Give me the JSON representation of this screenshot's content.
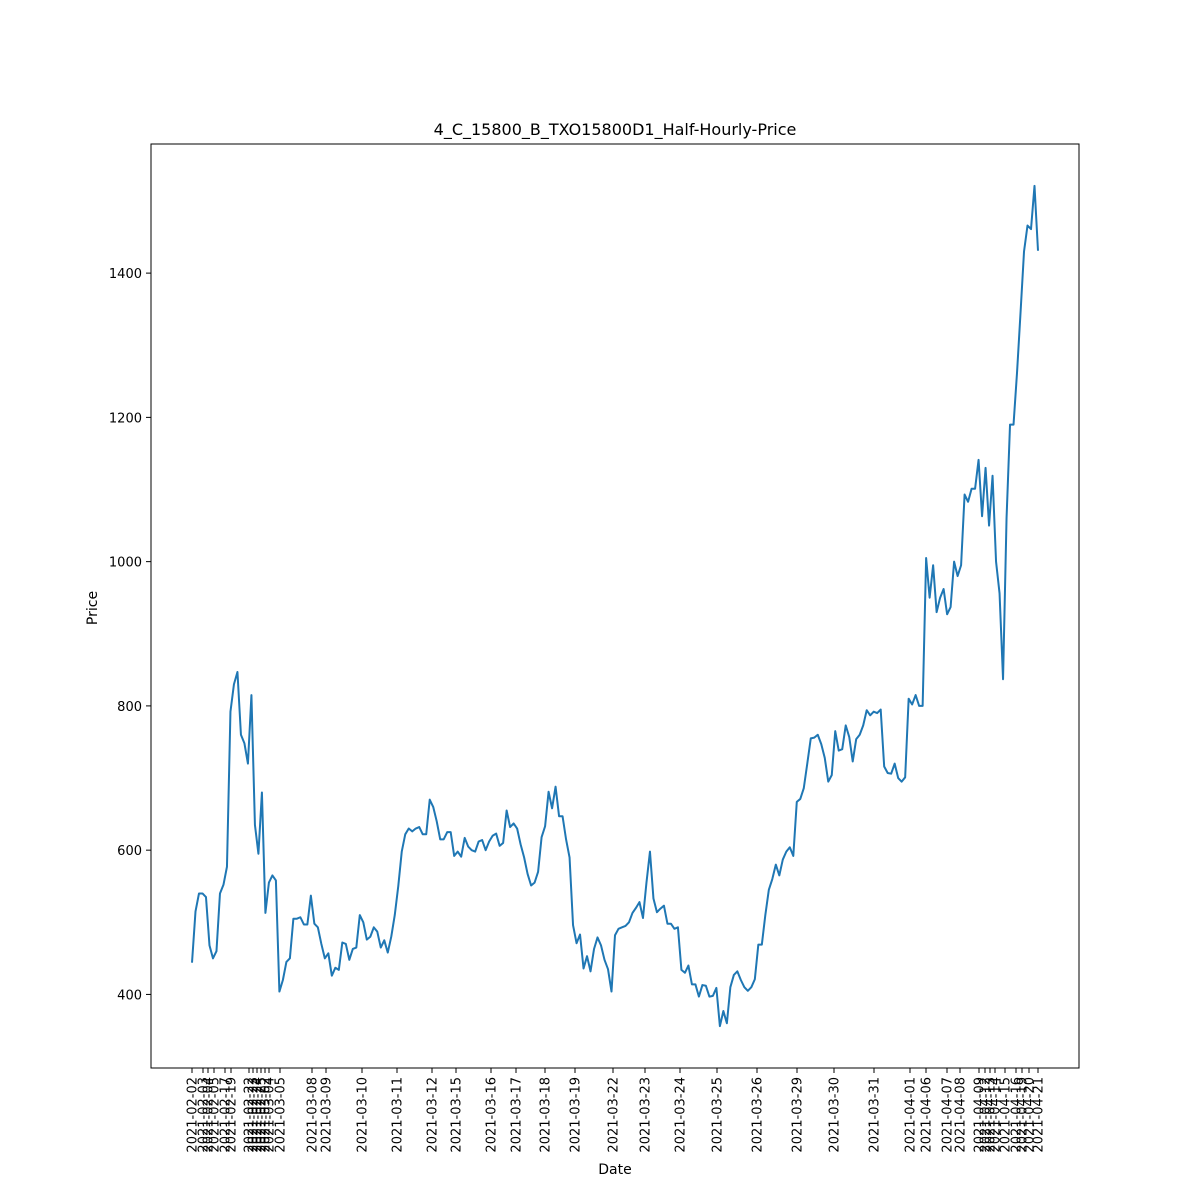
{
  "chart_data": {
    "type": "line",
    "title": "4_C_15800_B_TXO15800D1_Half-Hourly-Price",
    "xlabel": "Date",
    "ylabel": "Price",
    "ylim": [
      298,
      1579
    ],
    "y_ticks": [
      400,
      600,
      800,
      1000,
      1200,
      1400
    ],
    "y_tick_labels": [
      "400",
      "600",
      "800",
      "1000",
      "1200",
      "1400"
    ],
    "x_tick_labels": [
      "2021-02-02",
      "2021-02-03",
      "2021-02-04",
      "2021-02-05",
      "2021-02-17",
      "2021-02-19",
      "2021-02-22",
      "2021-02-23",
      "2021-02-24",
      "2021-02-25",
      "2021-03-02",
      "2021-03-04",
      "2021-03-05",
      "2021-03-08",
      "2021-03-09",
      "2021-03-10",
      "2021-03-11",
      "2021-03-12",
      "2021-03-15",
      "2021-03-16",
      "2021-03-17",
      "2021-03-18",
      "2021-03-19",
      "2021-03-22",
      "2021-03-23",
      "2021-03-24",
      "2021-03-25",
      "2021-03-26",
      "2021-03-29",
      "2021-03-30",
      "2021-03-31",
      "2021-04-01",
      "2021-04-06",
      "2021-04-07",
      "2021-04-08",
      "2021-04-09",
      "2021-04-12",
      "2021-04-13",
      "2021-04-14",
      "2021-04-15",
      "2021-04-16",
      "2021-04-19",
      "2021-04-20",
      "2021-04-21"
    ],
    "series": [
      {
        "color": "#1f77b4",
        "values": [
          444,
          515,
          540,
          540,
          535,
          468,
          450,
          460,
          540,
          552,
          577,
          792,
          830,
          847,
          760,
          748,
          720,
          815,
          635,
          595,
          680,
          513,
          555,
          565,
          558,
          404,
          420,
          445,
          450,
          505,
          505,
          507,
          497,
          497,
          537,
          498,
          493,
          470,
          450,
          457,
          426,
          437,
          434,
          472,
          470,
          448,
          463,
          465,
          510,
          500,
          476,
          480,
          493,
          487,
          465,
          475,
          458,
          480,
          510,
          550,
          598,
          622,
          630,
          626,
          630,
          632,
          622,
          622,
          670,
          660,
          640,
          615,
          615,
          625,
          625,
          592,
          598,
          591,
          617,
          605,
          600,
          598,
          612,
          614,
          600,
          612,
          620,
          623,
          606,
          610,
          655,
          632,
          637,
          630,
          608,
          590,
          567,
          551,
          555,
          570,
          618,
          633,
          681,
          658,
          688,
          647,
          647,
          615,
          590,
          496,
          471,
          483,
          436,
          453,
          432,
          463,
          479,
          468,
          448,
          435,
          404,
          482,
          491,
          493,
          495,
          500,
          513,
          520,
          528,
          506,
          555,
          598,
          533,
          514,
          519,
          523,
          498,
          498,
          491,
          493,
          434,
          430,
          440,
          414,
          414,
          397,
          413,
          412,
          397,
          398,
          409,
          356,
          377,
          360,
          410,
          427,
          432,
          420,
          410,
          405,
          410,
          421,
          469,
          469,
          510,
          545,
          560,
          580,
          565,
          587,
          598,
          604,
          592,
          667,
          671,
          686,
          720,
          755,
          756,
          760,
          747,
          728,
          695,
          704,
          765,
          738,
          740,
          773,
          757,
          723,
          754,
          760,
          773,
          794,
          787,
          792,
          790,
          795,
          716,
          707,
          706,
          720,
          700,
          695,
          701,
          810,
          802,
          815,
          800,
          800,
          1005,
          950,
          995,
          930,
          950,
          962,
          927,
          937,
          1000,
          980,
          995,
          1093,
          1083,
          1101,
          1101,
          1141,
          1063,
          1130,
          1050,
          1119,
          1000,
          956,
          837,
          1060,
          1190,
          1190,
          1262,
          1345,
          1430,
          1466,
          1461,
          1521,
          1431
        ]
      }
    ]
  }
}
